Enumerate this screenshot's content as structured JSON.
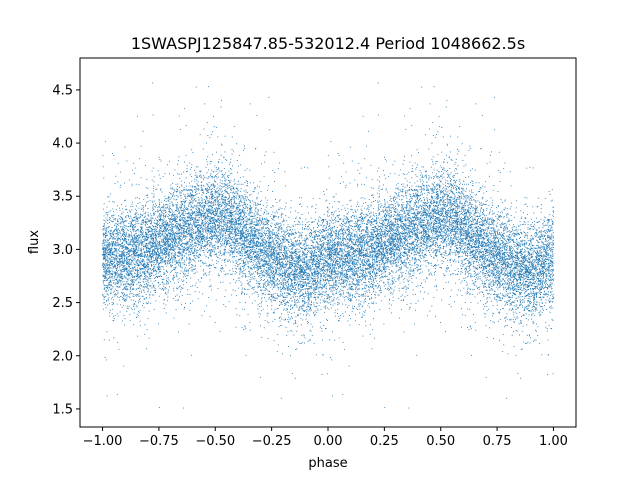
{
  "chart_data": {
    "type": "scatter",
    "title": "1SWASPJ125847.85-532012.4 Period 1048662.5s",
    "xlabel": "phase",
    "ylabel": "flux",
    "xlim": [
      -1.1,
      1.1
    ],
    "ylim": [
      1.33,
      4.8
    ],
    "x_ticks": [
      -1.0,
      -0.75,
      -0.5,
      -0.25,
      0.0,
      0.25,
      0.5,
      0.75,
      1.0
    ],
    "x_tick_labels": [
      "−1.00",
      "−0.75",
      "−0.50",
      "−0.25",
      "0.00",
      "0.25",
      "0.50",
      "0.75",
      "1.00"
    ],
    "y_ticks": [
      1.5,
      2.0,
      2.5,
      3.0,
      3.5,
      4.0,
      4.5
    ],
    "y_tick_labels": [
      "1.5",
      "2.0",
      "2.5",
      "3.0",
      "3.5",
      "4.0",
      "4.5"
    ],
    "marker_color": "#1f77b4",
    "grid": false,
    "phase_profile": {
      "phase": [
        0.0,
        0.1,
        0.2,
        0.3,
        0.4,
        0.5,
        0.55,
        0.6,
        0.7,
        0.8,
        0.9,
        1.0
      ],
      "mean_flux": [
        2.9,
        2.95,
        3.0,
        3.1,
        3.2,
        3.3,
        3.3,
        3.2,
        3.0,
        2.85,
        2.8,
        2.9
      ]
    },
    "point_count_estimate": 20000
  }
}
